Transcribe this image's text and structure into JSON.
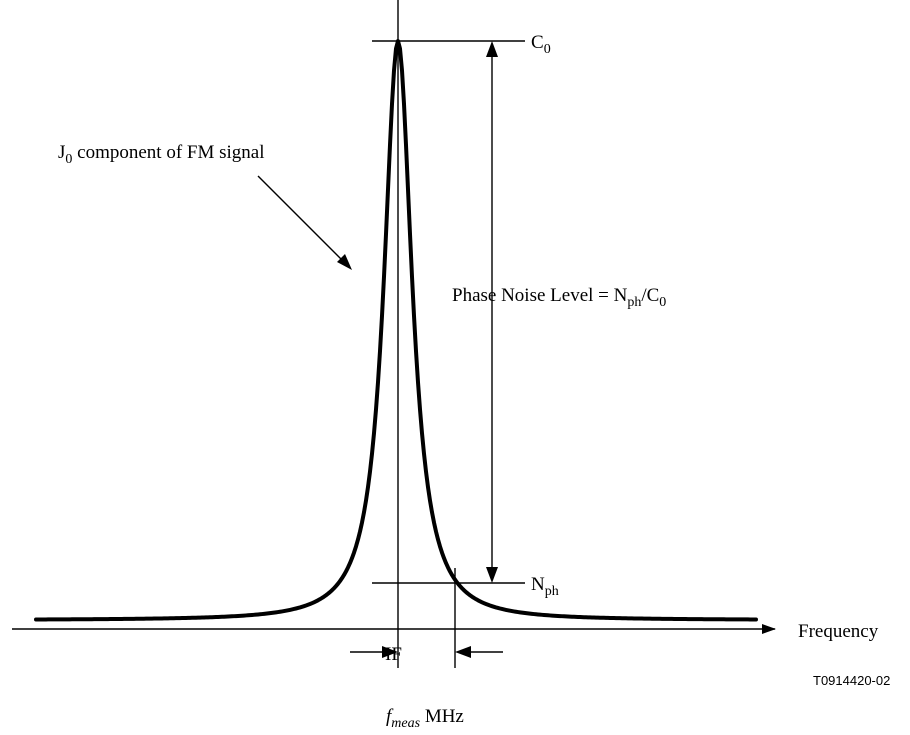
{
  "labels": {
    "c0_main": "C",
    "c0_sub": "0",
    "nph_main": "N",
    "nph_sub": "ph",
    "j0_main": "J",
    "j0_sub": "0",
    "j0_rest": " component of FM signal",
    "phase_noise_prefix": "Phase Noise Level = N",
    "phase_noise_sub1": "ph",
    "phase_noise_mid": "/C",
    "phase_noise_sub2": "0",
    "frequency": "Frequency",
    "if": "IF",
    "fmeas_main": "f",
    "fmeas_sub": "meas",
    "fmeas_unit": " MHz",
    "figure_id": "T0914420-02"
  }
}
